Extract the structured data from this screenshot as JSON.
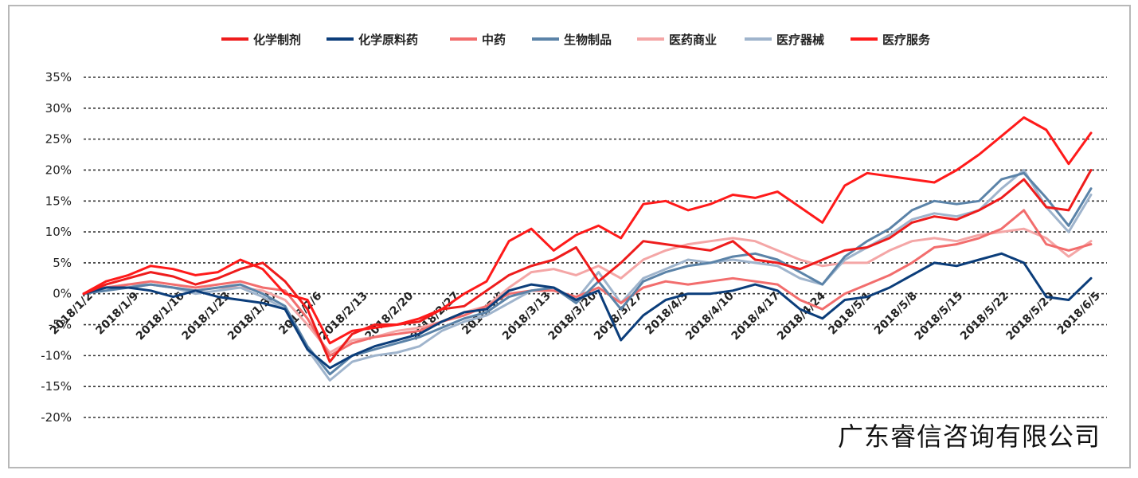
{
  "watermark": "广东睿信咨询有限公司",
  "chart_data": {
    "type": "line",
    "title": "",
    "xlabel": "",
    "ylabel": "",
    "ylim": [
      -20,
      35
    ],
    "yticks": [
      "35%",
      "30%",
      "25%",
      "20%",
      "15%",
      "10%",
      "5%",
      "0%",
      "-5%",
      "-10%",
      "-15%",
      "-20%"
    ],
    "ytick_values": [
      35,
      30,
      25,
      20,
      15,
      10,
      5,
      0,
      -5,
      -10,
      -15,
      -20
    ],
    "grid": "horizontal dashed",
    "legend_position": "top",
    "xticks": [
      "2018/1/2",
      "2018/1/9",
      "2018/1/16",
      "2018/1/23",
      "2018/1/30",
      "2018/2/6",
      "2018/2/13",
      "2018/2/20",
      "2018/2/27",
      "2018/3/6",
      "2018/3/13",
      "2018/3/20",
      "2018/3/27",
      "2018/4/3",
      "2018/4/10",
      "2018/4/17",
      "2018/4/24",
      "2018/5/1",
      "2018/5/8",
      "2018/5/15",
      "2018/5/22",
      "2018/5/29",
      "2018/6/5"
    ],
    "series": [
      {
        "name": "化学制剂",
        "color": "#ee1c1c",
        "values": [
          0,
          1.5,
          2.5,
          3.5,
          2.8,
          1.5,
          2.5,
          4.0,
          5.0,
          2.0,
          -2.5,
          -11.0,
          -6.5,
          -5.0,
          -5.0,
          -4.5,
          -2.5,
          -2.0,
          0.5,
          3.0,
          4.5,
          5.5,
          7.5,
          2.0,
          5.0,
          8.5,
          8.0,
          7.5,
          7.0,
          8.5,
          5.5,
          5.0,
          4.0,
          5.5,
          7.0,
          7.5,
          9.0,
          11.5,
          12.5,
          12.0,
          13.5,
          15.5,
          18.5,
          14.0,
          13.5,
          20.0
        ]
      },
      {
        "name": "化学原料药",
        "color": "#0b3d7a",
        "values": [
          0,
          1.0,
          1.0,
          0.5,
          -0.5,
          0.5,
          -0.5,
          -1.0,
          -1.5,
          -2.5,
          -9.0,
          -12.0,
          -10.0,
          -8.5,
          -7.5,
          -6.5,
          -4.5,
          -3.0,
          -2.5,
          0.5,
          1.5,
          1.0,
          -1.0,
          0.5,
          -7.5,
          -3.5,
          -1.0,
          0.0,
          0.0,
          0.5,
          1.5,
          0.5,
          -2.5,
          -4.0,
          -1.0,
          -0.5,
          1.0,
          3.0,
          5.0,
          4.5,
          5.5,
          6.5,
          5.0,
          -0.5,
          -1.0,
          2.5
        ]
      },
      {
        "name": "中药",
        "color": "#f26d6d",
        "values": [
          0,
          1.0,
          1.5,
          2.0,
          1.5,
          1.0,
          1.5,
          2.0,
          1.0,
          0.5,
          -4.0,
          -10.0,
          -8.0,
          -7.0,
          -6.5,
          -6.0,
          -4.5,
          -3.5,
          -2.0,
          0.0,
          0.5,
          0.5,
          -0.5,
          1.0,
          -1.5,
          1.0,
          2.0,
          1.5,
          2.0,
          2.5,
          2.0,
          1.5,
          -1.0,
          -2.5,
          0.0,
          1.5,
          3.0,
          5.0,
          7.5,
          8.0,
          9.0,
          10.5,
          13.5,
          8.0,
          7.0,
          8.0
        ]
      },
      {
        "name": "生物制品",
        "color": "#5b83a8",
        "values": [
          0,
          0.5,
          1.0,
          1.5,
          1.0,
          0.5,
          1.0,
          1.5,
          0.0,
          -2.0,
          -8.5,
          -13.0,
          -10.0,
          -9.0,
          -8.0,
          -7.0,
          -5.5,
          -4.0,
          -3.0,
          -0.5,
          0.5,
          1.0,
          -1.5,
          2.0,
          -2.5,
          2.0,
          3.5,
          4.5,
          5.0,
          6.0,
          6.5,
          5.5,
          3.5,
          1.5,
          6.0,
          8.5,
          10.5,
          13.5,
          15.0,
          14.5,
          15.0,
          18.5,
          19.5,
          15.5,
          11.0,
          17.0
        ]
      },
      {
        "name": "医药商业",
        "color": "#f4a6a6",
        "values": [
          0,
          1.0,
          1.0,
          1.5,
          1.0,
          0.5,
          1.0,
          1.0,
          0.5,
          -1.0,
          -5.0,
          -9.5,
          -7.5,
          -7.0,
          -6.0,
          -5.5,
          -4.5,
          -3.0,
          -2.0,
          1.0,
          3.5,
          4.0,
          3.0,
          4.5,
          2.5,
          5.5,
          7.0,
          8.0,
          8.5,
          9.0,
          8.5,
          7.0,
          5.5,
          4.5,
          5.0,
          5.0,
          7.0,
          8.5,
          9.0,
          8.5,
          9.5,
          10.0,
          10.5,
          9.0,
          6.0,
          8.5
        ]
      },
      {
        "name": "医疗器械",
        "color": "#9fb4cc",
        "values": [
          0,
          1.0,
          1.5,
          1.5,
          1.0,
          0.0,
          0.5,
          1.0,
          -0.5,
          -2.5,
          -9.0,
          -14.0,
          -11.0,
          -10.0,
          -9.5,
          -8.5,
          -6.0,
          -4.5,
          -3.5,
          -1.5,
          0.5,
          1.0,
          -1.0,
          3.5,
          -1.5,
          2.5,
          4.0,
          5.5,
          5.0,
          5.5,
          5.0,
          4.5,
          2.5,
          1.5,
          5.5,
          7.5,
          9.5,
          12.0,
          13.0,
          12.5,
          13.5,
          17.0,
          20.0,
          14.0,
          10.0,
          16.0
        ]
      },
      {
        "name": "医疗服务",
        "color": "#ff1a1a",
        "values": [
          0,
          2.0,
          3.0,
          4.5,
          4.0,
          3.0,
          3.5,
          5.5,
          4.0,
          0.0,
          -1.0,
          -8.0,
          -6.0,
          -5.5,
          -5.0,
          -4.0,
          -2.5,
          0.0,
          2.0,
          8.5,
          10.5,
          7.0,
          9.5,
          11.0,
          9.0,
          14.5,
          15.0,
          13.5,
          14.5,
          16.0,
          15.5,
          16.5,
          14.0,
          11.5,
          17.5,
          19.5,
          19.0,
          18.5,
          18.0,
          20.0,
          22.5,
          25.5,
          28.5,
          26.5,
          21.0,
          26.0
        ]
      }
    ]
  }
}
